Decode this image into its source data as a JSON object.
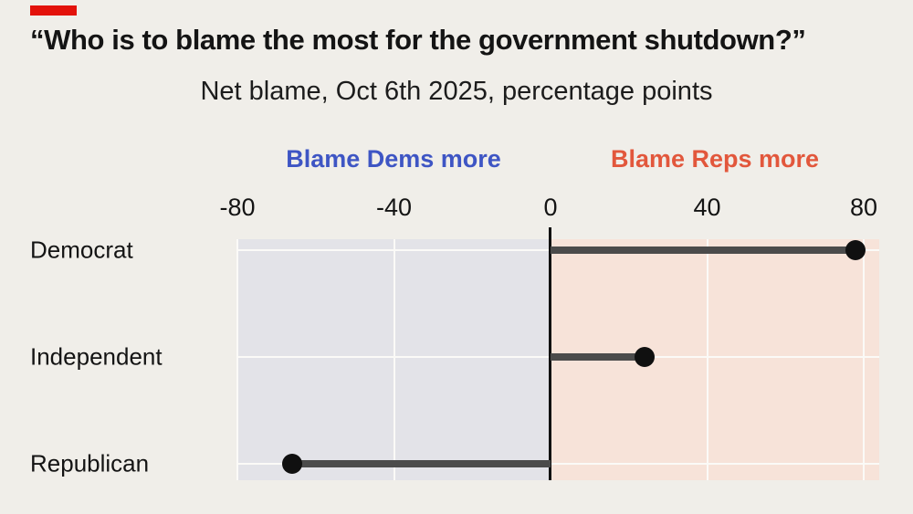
{
  "page": {
    "background": "#f0eee9"
  },
  "accent": {
    "color": "#e3120b"
  },
  "header": {
    "title": "“Who is to blame the most for the government shutdown?”",
    "subtitle": "Net blame, Oct 6th 2025, percentage points"
  },
  "chart_data": {
    "type": "bar",
    "orientation": "horizontal",
    "title": "“Who is to blame the most for the government shutdown?”",
    "subtitle": "Net blame, Oct 6th 2025, percentage points",
    "categories": [
      "Democrat",
      "Independent",
      "Republican"
    ],
    "values": [
      78,
      24,
      -66
    ],
    "unit": "percentage points",
    "x_ticks": [
      -80,
      -40,
      0,
      40,
      80
    ],
    "xlim": [
      -80,
      84
    ],
    "legend": [
      {
        "label": "Blame Dems more",
        "color": "#3e55c4",
        "region": "negative"
      },
      {
        "label": "Blame Reps more",
        "color": "#e2573c",
        "region": "positive"
      }
    ],
    "regions": {
      "negative_bg": "#e3e3e8",
      "positive_bg": "#f7e3d9"
    },
    "grid": true,
    "gridline_color": "#fbfaf7",
    "bar_color": "#4b4b4b",
    "dot_color": "#101010",
    "zero_line_color": "#111111",
    "legend_position": "top",
    "xlabel": "",
    "ylabel": ""
  }
}
